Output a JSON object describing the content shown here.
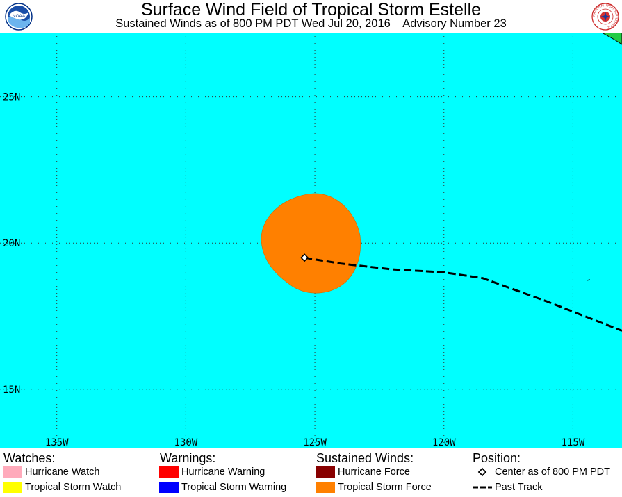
{
  "header": {
    "title": "Surface Wind Field of Tropical Storm Estelle",
    "subtitle": "Sustained Winds as of 800 PM PDT Wed Jul 20, 2016    Advisory Number 23",
    "logo_left_text": "NOAA",
    "logo_right_text": "NATIONAL WEATHER SERVICE"
  },
  "map": {
    "ocean_color": "#00ffff",
    "land_color": "#22cc44",
    "wind_field_color": "#ff8000",
    "lon_labels": [
      "135W",
      "130W",
      "125W",
      "120W",
      "115W"
    ],
    "lat_labels": [
      "25N",
      "20N",
      "15N"
    ],
    "lon_range": [
      -137.2,
      -113.1
    ],
    "lat_range": [
      13.0,
      27.2
    ],
    "center": {
      "lon": -125.4,
      "lat": 19.5
    },
    "past_track": [
      {
        "lon": -125.4,
        "lat": 19.5
      },
      {
        "lon": -124.0,
        "lat": 19.3
      },
      {
        "lon": -122.0,
        "lat": 19.1
      },
      {
        "lon": -120.0,
        "lat": 19.0
      },
      {
        "lon": -118.5,
        "lat": 18.8
      },
      {
        "lon": -116.0,
        "lat": 18.0
      },
      {
        "lon": -113.1,
        "lat": 17.0
      }
    ]
  },
  "legend": {
    "watches": {
      "heading": "Watches:",
      "items": [
        {
          "label": "Hurricane Watch",
          "color": "#ffaabb"
        },
        {
          "label": "Tropical Storm Watch",
          "color": "#ffff00"
        }
      ]
    },
    "warnings": {
      "heading": "Warnings:",
      "items": [
        {
          "label": "Hurricane Warning",
          "color": "#ff0000"
        },
        {
          "label": "Tropical Storm Warning",
          "color": "#0000ff"
        }
      ]
    },
    "winds": {
      "heading": "Sustained Winds:",
      "items": [
        {
          "label": "Hurricane Force",
          "color": "#880000"
        },
        {
          "label": "Tropical Storm Force",
          "color": "#ff8000"
        }
      ]
    },
    "position": {
      "heading": "Position:",
      "center_label": "Center as of 800 PM PDT",
      "track_label": "Past Track"
    }
  }
}
